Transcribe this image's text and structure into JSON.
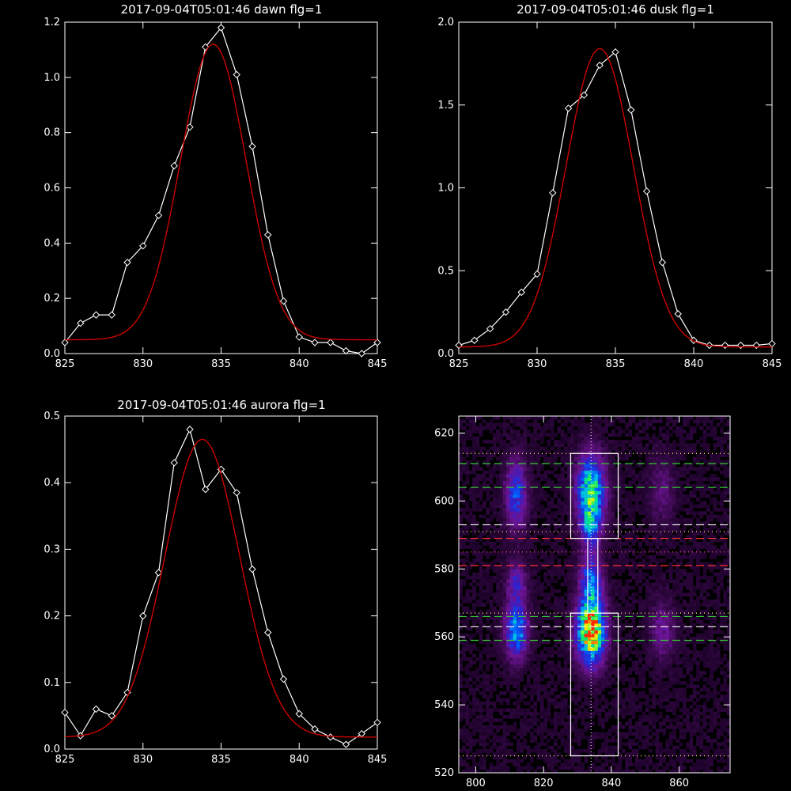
{
  "chart_data": [
    {
      "type": "line",
      "title": "2017-09-04T05:01:46 dawn flg=1",
      "xlim": [
        825,
        845
      ],
      "ylim": [
        0,
        1.2
      ],
      "xticks": [
        825,
        830,
        835,
        840,
        845
      ],
      "yticks": [
        0.0,
        0.2,
        0.4,
        0.6,
        0.8,
        1.0,
        1.2
      ],
      "ytick_labels": [
        "0.0",
        "0.2",
        "0.4",
        "0.6",
        "0.8",
        "1.0",
        "1.2"
      ],
      "series": [
        {
          "color": "#ffffff",
          "marker": "diamond",
          "x": [
            825,
            826,
            827,
            828,
            829,
            830,
            831,
            832,
            833,
            834,
            835,
            836,
            837,
            838,
            839,
            840,
            841,
            842,
            843,
            844,
            845
          ],
          "y": [
            0.04,
            0.11,
            0.14,
            0.14,
            0.33,
            0.39,
            0.5,
            0.68,
            0.82,
            1.11,
            1.18,
            1.01,
            0.75,
            0.43,
            0.19,
            0.06,
            0.04,
            0.04,
            0.01,
            0.0,
            0.04
          ]
        },
        {
          "color": "#cc0000",
          "model": "gaussian",
          "amplitude": 1.07,
          "center": 834.5,
          "sigma": 2.1,
          "offset": 0.05
        }
      ]
    },
    {
      "type": "line",
      "title": "2017-09-04T05:01:46 dusk flg=1",
      "xlim": [
        825,
        845
      ],
      "ylim": [
        0,
        2.0
      ],
      "xticks": [
        825,
        830,
        835,
        840,
        845
      ],
      "yticks": [
        0.0,
        0.5,
        1.0,
        1.5,
        2.0
      ],
      "ytick_labels": [
        "0.0",
        "0.5",
        "1.0",
        "1.5",
        "2.0"
      ],
      "series": [
        {
          "color": "#ffffff",
          "marker": "diamond",
          "x": [
            825,
            826,
            827,
            828,
            829,
            830,
            831,
            832,
            833,
            834,
            835,
            836,
            837,
            838,
            839,
            840,
            841,
            842,
            843,
            844,
            845
          ],
          "y": [
            0.05,
            0.08,
            0.15,
            0.25,
            0.37,
            0.48,
            0.97,
            1.48,
            1.56,
            1.74,
            1.82,
            1.47,
            0.98,
            0.55,
            0.24,
            0.08,
            0.05,
            0.05,
            0.05,
            0.05,
            0.06
          ]
        },
        {
          "color": "#cc0000",
          "model": "gaussian",
          "amplitude": 1.8,
          "center": 834.0,
          "sigma": 2.15,
          "offset": 0.04
        }
      ]
    },
    {
      "type": "line",
      "title": "2017-09-04T05:01:46 aurora flg=1",
      "xlim": [
        825,
        845
      ],
      "ylim": [
        0,
        0.5
      ],
      "xticks": [
        825,
        830,
        835,
        840,
        845
      ],
      "yticks": [
        0.0,
        0.1,
        0.2,
        0.3,
        0.4,
        0.5
      ],
      "ytick_labels": [
        "0.0",
        "0.1",
        "0.2",
        "0.3",
        "0.4",
        "0.5"
      ],
      "series": [
        {
          "color": "#ffffff",
          "marker": "diamond",
          "x": [
            825,
            826,
            827,
            828,
            829,
            830,
            831,
            832,
            833,
            834,
            835,
            836,
            837,
            838,
            839,
            840,
            841,
            842,
            843,
            844,
            845
          ],
          "y": [
            0.055,
            0.02,
            0.06,
            0.05,
            0.085,
            0.2,
            0.265,
            0.43,
            0.48,
            0.39,
            0.42,
            0.385,
            0.27,
            0.175,
            0.105,
            0.053,
            0.03,
            0.018,
            0.007,
            0.023,
            0.04
          ]
        },
        {
          "color": "#cc0000",
          "model": "gaussian",
          "amplitude": 0.447,
          "center": 833.8,
          "sigma": 2.4,
          "offset": 0.018
        }
      ]
    },
    {
      "type": "heatmap",
      "xlim": [
        795,
        875
      ],
      "ylim": [
        520,
        625
      ],
      "xticks": [
        800,
        820,
        840,
        860
      ],
      "yticks": [
        520,
        540,
        560,
        580,
        600,
        620
      ],
      "blobs": [
        {
          "x": 812,
          "y": 562,
          "sx": 2.2,
          "sy": 5.5,
          "amp": 0.55
        },
        {
          "x": 812,
          "y": 576,
          "sx": 2.0,
          "sy": 4.0,
          "amp": 0.28
        },
        {
          "x": 812,
          "y": 602,
          "sx": 2.2,
          "sy": 7.0,
          "amp": 0.38
        },
        {
          "x": 834,
          "y": 562,
          "sx": 2.8,
          "sy": 6.5,
          "amp": 1.0
        },
        {
          "x": 834,
          "y": 577,
          "sx": 2.2,
          "sy": 5.0,
          "amp": 0.42
        },
        {
          "x": 834,
          "y": 603,
          "sx": 2.8,
          "sy": 7.0,
          "amp": 0.72
        },
        {
          "x": 834,
          "y": 592,
          "sx": 2.0,
          "sy": 4.0,
          "amp": 0.35
        },
        {
          "x": 855,
          "y": 562,
          "sx": 2.5,
          "sy": 6.0,
          "amp": 0.2
        },
        {
          "x": 855,
          "y": 603,
          "sx": 2.5,
          "sy": 7.0,
          "amp": 0.14
        }
      ],
      "boxes": [
        {
          "x0": 828,
          "x1": 842,
          "y0": 589,
          "y1": 614
        },
        {
          "x0": 828,
          "x1": 842,
          "y0": 525,
          "y1": 567
        },
        {
          "x0": 833,
          "x1": 836,
          "y0": 567,
          "y1": 589
        }
      ],
      "vlines": [
        {
          "x": 834,
          "color": "#ffffff",
          "style": "dotted"
        }
      ],
      "hlines": [
        {
          "y": 614,
          "color": "#ffff66",
          "style": "dotted"
        },
        {
          "y": 611,
          "color": "#33cc33",
          "style": "dashed"
        },
        {
          "y": 604,
          "color": "#33cc33",
          "style": "dashed"
        },
        {
          "y": 593,
          "color": "#ffffff",
          "style": "dashed"
        },
        {
          "y": 591,
          "color": "#ffff66",
          "style": "dotted"
        },
        {
          "y": 589,
          "color": "#ff3333",
          "style": "dashed"
        },
        {
          "y": 585,
          "color": "#ff6666",
          "style": "dotted"
        },
        {
          "y": 581,
          "color": "#ff3333",
          "style": "dashed"
        },
        {
          "y": 567,
          "color": "#ffff66",
          "style": "dotted"
        },
        {
          "y": 566,
          "color": "#33cc33",
          "style": "dashed"
        },
        {
          "y": 563,
          "color": "#ffffff",
          "style": "dashed"
        },
        {
          "y": 559,
          "color": "#33cc33",
          "style": "dashed"
        },
        {
          "y": 525,
          "color": "#ffff66",
          "style": "dotted"
        }
      ]
    }
  ]
}
